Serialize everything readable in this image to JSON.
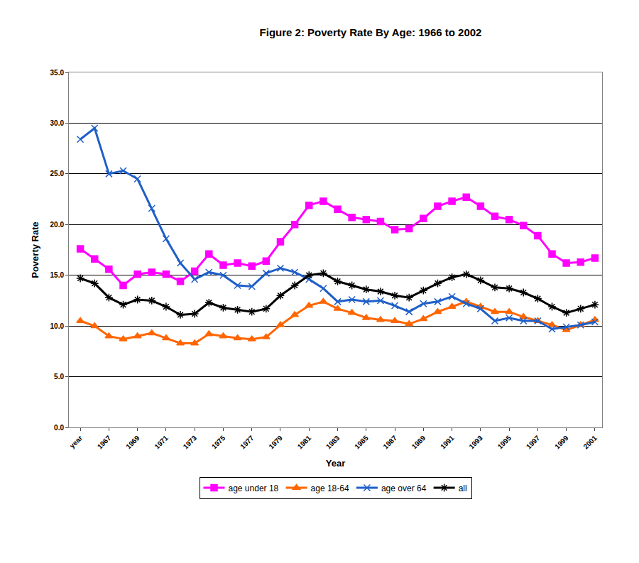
{
  "chart_data": {
    "type": "line",
    "title": "Figure 2: Poverty Rate By Age: 1966 to 2002",
    "x_label": "Year",
    "y_label": "Poverty Rate",
    "categories": [
      "year",
      null,
      "1967",
      null,
      "1969",
      null,
      "1971",
      null,
      "1973",
      null,
      "1975",
      null,
      "1977",
      null,
      "1979",
      null,
      "1981",
      null,
      "1983",
      null,
      "1985",
      null,
      "1987",
      null,
      "1989",
      null,
      "1991",
      null,
      "1993",
      null,
      "1995",
      null,
      "1997",
      null,
      "1999",
      null,
      "2001"
    ],
    "series": [
      {
        "name": "age under 18",
        "color": "#ff00ff",
        "marker": "square",
        "line_style": "solid",
        "values": [
          17.6,
          16.6,
          15.6,
          14.0,
          15.1,
          15.3,
          15.1,
          14.4,
          15.4,
          17.1,
          16.0,
          16.2,
          15.9,
          16.4,
          18.3,
          20.0,
          21.9,
          22.3,
          21.5,
          20.7,
          20.5,
          20.3,
          19.5,
          19.6,
          20.6,
          21.8,
          22.3,
          22.7,
          21.8,
          20.8,
          20.5,
          19.9,
          18.9,
          17.1,
          16.2,
          16.3,
          16.7
        ]
      },
      {
        "name": "age 18-64",
        "color": "#ff6600",
        "marker": "triangle",
        "line_style": "solid",
        "values": [
          10.5,
          10.0,
          9.0,
          8.7,
          9.0,
          9.3,
          8.8,
          8.3,
          8.3,
          9.2,
          9.0,
          8.8,
          8.7,
          8.9,
          10.1,
          11.1,
          12.0,
          12.4,
          11.7,
          11.3,
          10.8,
          10.6,
          10.5,
          10.2,
          10.7,
          11.4,
          11.9,
          12.4,
          11.9,
          11.4,
          11.4,
          10.9,
          10.5,
          10.1,
          9.6,
          10.1,
          10.6
        ]
      },
      {
        "name": "age over 64",
        "color": "#1f5fc8",
        "marker": "x",
        "line_style": "solid",
        "values": [
          28.4,
          29.5,
          25.0,
          25.3,
          24.5,
          21.6,
          18.6,
          16.2,
          14.6,
          15.3,
          15.0,
          14.0,
          13.9,
          15.2,
          15.7,
          15.3,
          14.6,
          13.7,
          12.4,
          12.6,
          12.4,
          12.5,
          12.0,
          11.4,
          12.2,
          12.4,
          12.9,
          12.2,
          11.7,
          10.5,
          10.8,
          10.5,
          10.5,
          9.7,
          9.9,
          10.1,
          10.4
        ]
      },
      {
        "name": "all",
        "color": "#000000",
        "marker": "asterisk",
        "line_style": "solid",
        "values": [
          14.7,
          14.2,
          12.8,
          12.1,
          12.6,
          12.5,
          11.9,
          11.1,
          11.2,
          12.3,
          11.8,
          11.6,
          11.4,
          11.7,
          13.0,
          14.0,
          15.0,
          15.2,
          14.4,
          14.0,
          13.6,
          13.4,
          13.0,
          12.8,
          13.5,
          14.2,
          14.8,
          15.1,
          14.5,
          13.8,
          13.7,
          13.3,
          12.7,
          11.9,
          11.3,
          11.7,
          12.1
        ]
      }
    ],
    "ylim": [
      0,
      35
    ],
    "yticks": [
      {
        "value": 0,
        "label": "0.0"
      },
      {
        "value": 5,
        "label": "5.0"
      },
      {
        "value": 10,
        "label": "10.0"
      },
      {
        "value": 15,
        "label": "15.0"
      },
      {
        "value": 20,
        "label": "20.0"
      },
      {
        "value": 25,
        "label": "25.0"
      },
      {
        "value": 30,
        "label": "30.0"
      },
      {
        "value": 35,
        "label": "35.0"
      }
    ],
    "grid": true,
    "legend": "bottom"
  }
}
